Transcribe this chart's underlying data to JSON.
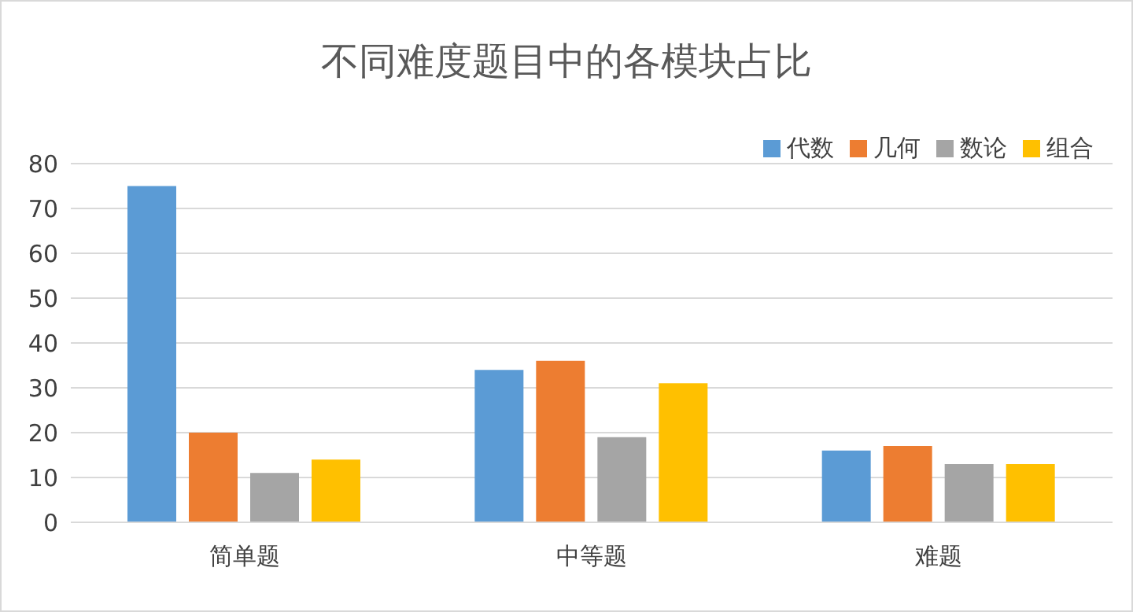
{
  "chart_data": {
    "type": "bar",
    "title": "不同难度题目中的各模块占比",
    "categories": [
      "简单题",
      "中等题",
      "难题"
    ],
    "series": [
      {
        "name": "代数",
        "color": "#5b9bd5",
        "values": [
          75,
          34,
          16
        ]
      },
      {
        "name": "几何",
        "color": "#ed7d31",
        "values": [
          20,
          36,
          17
        ]
      },
      {
        "name": "数论",
        "color": "#a5a5a5",
        "values": [
          11,
          19,
          13
        ]
      },
      {
        "name": "组合",
        "color": "#ffc000",
        "values": [
          14,
          31,
          13
        ]
      }
    ],
    "ylim": [
      0,
      80
    ],
    "yticks": [
      0,
      10,
      20,
      30,
      40,
      50,
      60,
      70,
      80
    ],
    "grid": "y",
    "legend": "top right"
  }
}
